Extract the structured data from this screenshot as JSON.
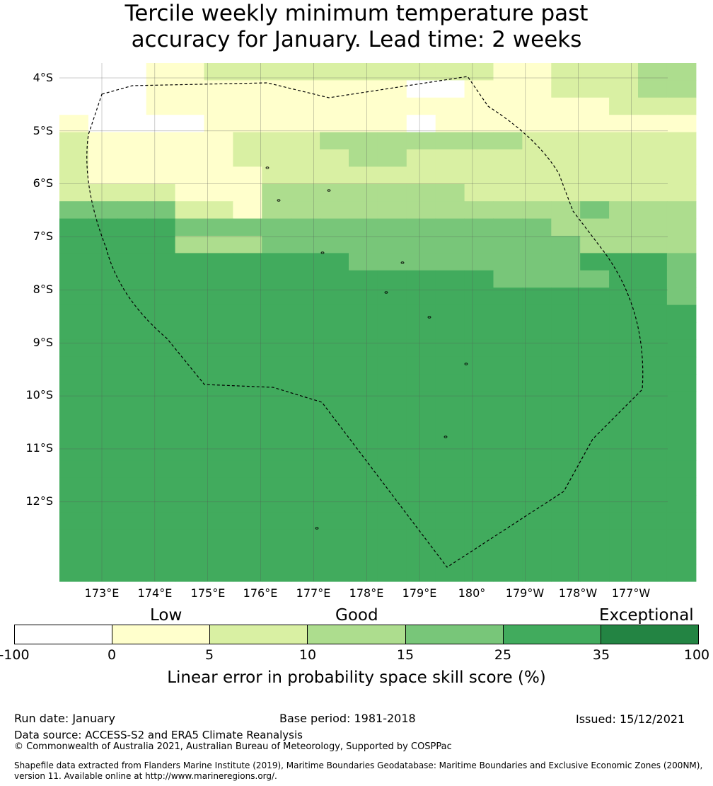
{
  "title": {
    "line1": "Tercile weekly minimum temperature past",
    "line2": "accuracy for January. Lead time: 2 weeks"
  },
  "map": {
    "lat_labels": [
      "4°S",
      "5°S",
      "6°S",
      "7°S",
      "8°S",
      "9°S",
      "10°S",
      "11°S",
      "12°S"
    ],
    "lon_labels": [
      "173°E",
      "174°E",
      "175°E",
      "176°E",
      "177°E",
      "178°E",
      "179°E",
      "180°",
      "179°W",
      "178°W",
      "177°W"
    ],
    "palette": [
      "#ffffff",
      "#ffffcc",
      "#d9f0a3",
      "#addd8e",
      "#78c679",
      "#41ab5d",
      "#238443"
    ],
    "grid": [
      "0001122222222221122233",
      "0001111111110011122233",
      "0001111111111111111222",
      "1000011111110111111111",
      "2111112223333333222222",
      "2111112222332222222222",
      "2111111222222222222222",
      "2222111333333322222222",
      "4444221333333333334333",
      "5555444444444444433333",
      "5555333444444444443333",
      "5555555555444444445554",
      "5555555555555554444554",
      "5555555555555555555554",
      "5555555555555555555555",
      "5555555555555555555555",
      "5555555555555555555555",
      "5555555555555555555555",
      "5555555555555555555555",
      "5555555555555555555555",
      "5555555555555555555555",
      "5555555555555555555555",
      "5555555555555555555555",
      "5555555555555555555555",
      "5555555555555555555555",
      "5555555555555555555555",
      "5555555555555555555555",
      "5555555555555555555555",
      "5555555555555555555555",
      "5555555555555555555555"
    ]
  },
  "legend": {
    "categories": {
      "low": "Low",
      "good": "Good",
      "exceptional": "Exceptional"
    },
    "colors": [
      "#ffffff",
      "#ffffcc",
      "#d9f0a3",
      "#addd8e",
      "#78c679",
      "#41ab5d",
      "#238443"
    ],
    "ticks": [
      "-100",
      "0",
      "5",
      "10",
      "15",
      "25",
      "35",
      "100"
    ],
    "label": "Linear error in probability space skill score (%)"
  },
  "footer": {
    "run_date": "Run date: January",
    "base_period": "Base period: 1981-2018",
    "issued": "Issued: 15/12/2021",
    "data_source": "Data source: ACCESS-S2 and ERA5 Climate Reanalysis",
    "copyright": "© Commonwealth of Australia 2021, Australian Bureau of Meteorology, Supported by COSPPac",
    "shapefile_line1": "Shapefile data extracted from Flanders Marine Institute (2019), Maritime Boundaries Geodatabase: Maritime Boundaries and Exclusive Economic Zones (200NM),",
    "shapefile_line2": "version 11. Available online at http://www.marineregions.org/."
  }
}
